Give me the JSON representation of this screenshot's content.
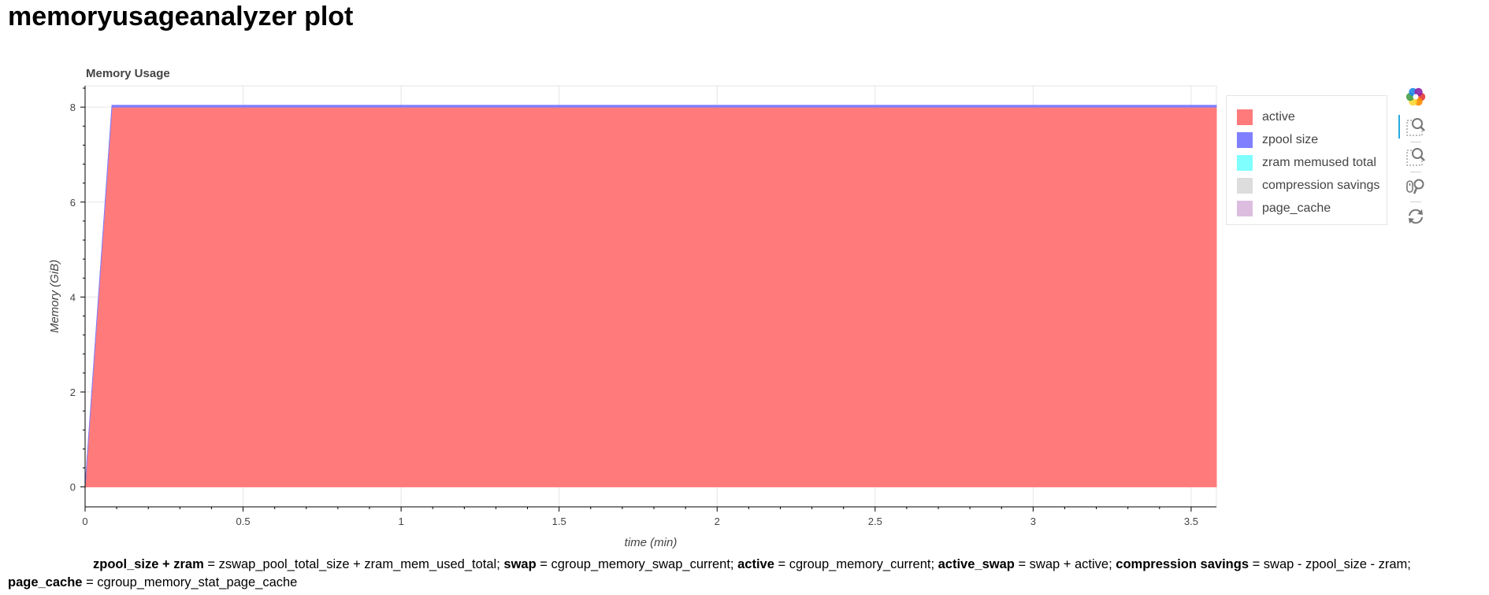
{
  "page": {
    "title": "memoryusageanalyzer plot"
  },
  "chart_data": {
    "type": "area",
    "title": "Memory Usage",
    "xlabel": "time (min)",
    "ylabel": "Memory (GiB)",
    "xlim": [
      0,
      3.58
    ],
    "ylim": [
      -0.42,
      8.45
    ],
    "x_ticks": [
      "0",
      "0.5",
      "1",
      "1.5",
      "2",
      "2.5",
      "3",
      "3.5"
    ],
    "x_tick_values": [
      0,
      0.5,
      1,
      1.5,
      2,
      2.5,
      3,
      3.5
    ],
    "y_ticks": [
      "0",
      "2",
      "4",
      "6",
      "8"
    ],
    "y_tick_values": [
      0,
      2,
      4,
      6,
      8
    ],
    "grid": true,
    "legend_position": "right",
    "x": [
      0,
      0.085,
      3.58
    ],
    "series": [
      {
        "name": "active",
        "color": "#ff7b7b",
        "values": [
          0,
          8.0,
          8.0
        ]
      },
      {
        "name": "zpool size",
        "color": "#7f7fff",
        "values": [
          0,
          0.04,
          0.04
        ]
      },
      {
        "name": "zram memused total",
        "color": "#80ffff",
        "values": [
          0,
          0,
          0
        ]
      },
      {
        "name": "compression savings",
        "color": "#dddddd",
        "values": [
          0,
          0,
          0
        ]
      },
      {
        "name": "page_cache",
        "color": "#dcbde0",
        "values": [
          0,
          0,
          0
        ]
      }
    ]
  },
  "toolbar": {
    "items": [
      {
        "name": "bokeh-logo-icon",
        "active": false
      },
      {
        "name": "box-zoom-icon",
        "active": true
      },
      {
        "name": "box-zoom-alt-icon",
        "active": false
      },
      {
        "name": "wheel-zoom-icon",
        "active": false
      },
      {
        "name": "reset-icon",
        "active": false
      }
    ]
  },
  "caption": {
    "parts": [
      {
        "text": "zpool_size + zram",
        "bold": true
      },
      {
        "text": " = zswap_pool_total_size + zram_mem_used_total; ",
        "bold": false
      },
      {
        "text": "swap",
        "bold": true
      },
      {
        "text": " = cgroup_memory_swap_current; ",
        "bold": false
      },
      {
        "text": "active",
        "bold": true
      },
      {
        "text": " = cgroup_memory_current; ",
        "bold": false
      },
      {
        "text": "active_swap",
        "bold": true
      },
      {
        "text": " = swap + active; ",
        "bold": false
      },
      {
        "text": "compression savings",
        "bold": true
      },
      {
        "text": " = swap - zpool_size - zram; ",
        "bold": false
      },
      {
        "text": "page_cache",
        "bold": true
      },
      {
        "text": " = cgroup_memory_stat_page_cache",
        "bold": false
      }
    ]
  }
}
